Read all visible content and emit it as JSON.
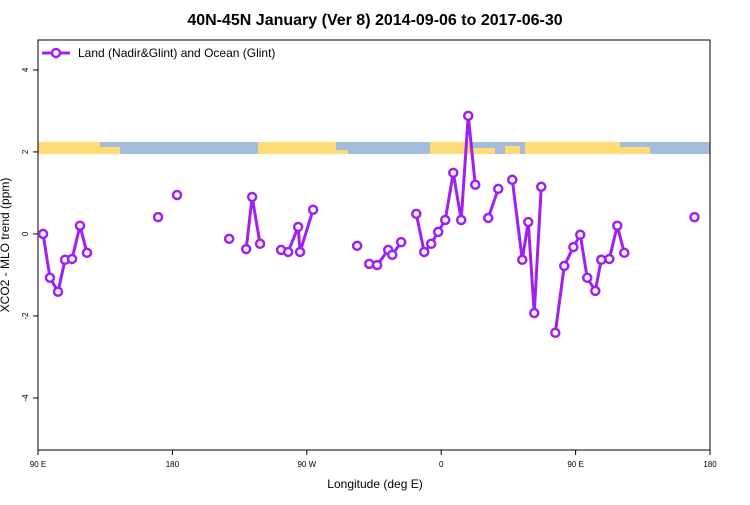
{
  "chart_data": {
    "type": "line",
    "title": "40N-45N January (Ver 8)   2014-09-06 to 2017-06-30",
    "x_label": "Longitude (deg E)",
    "y_label": "XCO2 - MLO trend (ppm)",
    "xlim": [
      90,
      540
    ],
    "ylim": [
      -5.27,
      4.73
    ],
    "xticks": [
      {
        "value": 90,
        "label": "90 E"
      },
      180,
      {
        "value": 270,
        "label": "90 W"
      },
      {
        "value": 360,
        "label": "0"
      },
      {
        "value": 450,
        "label": "90 E"
      },
      {
        "value": 540,
        "label": "180"
      }
    ],
    "yticks": [
      -4,
      -2,
      0,
      2,
      4
    ],
    "legend": "top-left",
    "series": [
      {
        "name": "Land (Nadir&Glint) and Ocean (Glint)",
        "color": "#a020f0",
        "x": [
          93.4,
          98.0,
          103.4,
          108.1,
          112.8,
          118.1,
          122.8,
          null,
          170.4,
          null,
          183.1,
          null,
          218.0,
          null,
          229.4,
          233.4,
          238.7,
          null,
          252.8,
          257.5,
          264.2,
          265.5,
          274.2,
          null,
          303.7,
          null,
          311.8,
          317.1,
          324.5,
          327.2,
          333.2,
          null,
          343.3,
          348.6,
          353.3,
          358.0,
          362.7,
          368.1,
          373.4,
          378.1,
          382.8,
          null,
          391.5,
          398.2,
          null,
          407.6,
          414.3,
          418.3,
          422.3,
          427.0,
          null,
          436.4,
          442.4,
          448.5,
          453.1,
          457.8,
          463.2,
          467.2,
          472.6,
          477.9,
          482.6,
          null,
          529.6
        ],
        "values": [
          0.0,
          -1.07,
          -1.41,
          -0.63,
          -0.61,
          0.2,
          -0.46,
          null,
          0.41,
          null,
          0.95,
          null,
          -0.12,
          null,
          -0.37,
          0.9,
          -0.24,
          null,
          -0.39,
          -0.44,
          0.17,
          -0.44,
          0.59,
          null,
          -0.29,
          null,
          -0.73,
          -0.76,
          -0.39,
          -0.51,
          -0.2,
          null,
          0.49,
          -0.44,
          -0.24,
          0.05,
          0.34,
          1.49,
          0.34,
          2.88,
          1.2,
          null,
          0.39,
          1.1,
          null,
          1.32,
          -0.63,
          0.29,
          -1.93,
          1.15,
          null,
          -2.41,
          -0.78,
          -0.32,
          -0.02,
          -1.07,
          -1.39,
          -0.63,
          -0.61,
          0.2,
          -0.46,
          null,
          0.41
        ]
      }
    ]
  }
}
